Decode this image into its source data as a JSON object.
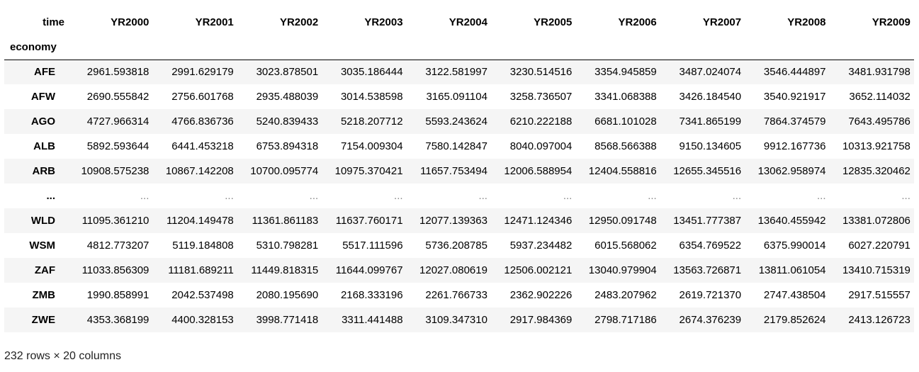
{
  "table": {
    "column_index_name": "time",
    "row_index_name": "economy",
    "columns": [
      "YR2000",
      "YR2001",
      "YR2002",
      "YR2003",
      "YR2004",
      "YR2005",
      "YR2006",
      "YR2007",
      "YR2008",
      "YR2009"
    ],
    "rows": [
      {
        "index": "AFE",
        "values": [
          "2961.593818",
          "2991.629179",
          "3023.878501",
          "3035.186444",
          "3122.581997",
          "3230.514516",
          "3354.945859",
          "3487.024074",
          "3546.444897",
          "3481.931798"
        ]
      },
      {
        "index": "AFW",
        "values": [
          "2690.555842",
          "2756.601768",
          "2935.488039",
          "3014.538598",
          "3165.091104",
          "3258.736507",
          "3341.068388",
          "3426.184540",
          "3540.921917",
          "3652.114032"
        ]
      },
      {
        "index": "AGO",
        "values": [
          "4727.966314",
          "4766.836736",
          "5240.839433",
          "5218.207712",
          "5593.243624",
          "6210.222188",
          "6681.101028",
          "7341.865199",
          "7864.374579",
          "7643.495786"
        ]
      },
      {
        "index": "ALB",
        "values": [
          "5892.593644",
          "6441.453218",
          "6753.894318",
          "7154.009304",
          "7580.142847",
          "8040.097004",
          "8568.566388",
          "9150.134605",
          "9912.167736",
          "10313.921758"
        ]
      },
      {
        "index": "ARB",
        "values": [
          "10908.575238",
          "10867.142208",
          "10700.095774",
          "10975.370421",
          "11657.753494",
          "12006.588954",
          "12404.558816",
          "12655.345516",
          "13062.958974",
          "12835.320462"
        ]
      },
      {
        "index": "...",
        "values": [
          "...",
          "...",
          "...",
          "...",
          "...",
          "...",
          "...",
          "...",
          "...",
          "..."
        ],
        "ellipsis": true
      },
      {
        "index": "WLD",
        "values": [
          "11095.361210",
          "11204.149478",
          "11361.861183",
          "11637.760171",
          "12077.139363",
          "12471.124346",
          "12950.091748",
          "13451.777387",
          "13640.455942",
          "13381.072806"
        ]
      },
      {
        "index": "WSM",
        "values": [
          "4812.773207",
          "5119.184808",
          "5310.798281",
          "5517.111596",
          "5736.208785",
          "5937.234482",
          "6015.568062",
          "6354.769522",
          "6375.990014",
          "6027.220791"
        ]
      },
      {
        "index": "ZAF",
        "values": [
          "11033.856309",
          "11181.689211",
          "11449.818315",
          "11644.099767",
          "12027.080619",
          "12506.002121",
          "13040.979904",
          "13563.726871",
          "13811.061054",
          "13410.715319"
        ]
      },
      {
        "index": "ZMB",
        "values": [
          "1990.858991",
          "2042.537498",
          "2080.195690",
          "2168.333196",
          "2261.766733",
          "2362.902226",
          "2483.207962",
          "2619.721370",
          "2747.438504",
          "2917.515557"
        ]
      },
      {
        "index": "ZWE",
        "values": [
          "4353.368199",
          "4400.328153",
          "3998.771418",
          "3311.441488",
          "3109.347310",
          "2917.984369",
          "2798.717186",
          "2674.376239",
          "2179.852624",
          "2413.126723"
        ]
      }
    ]
  },
  "footer": {
    "shape_text": "232 rows × 20 columns"
  }
}
